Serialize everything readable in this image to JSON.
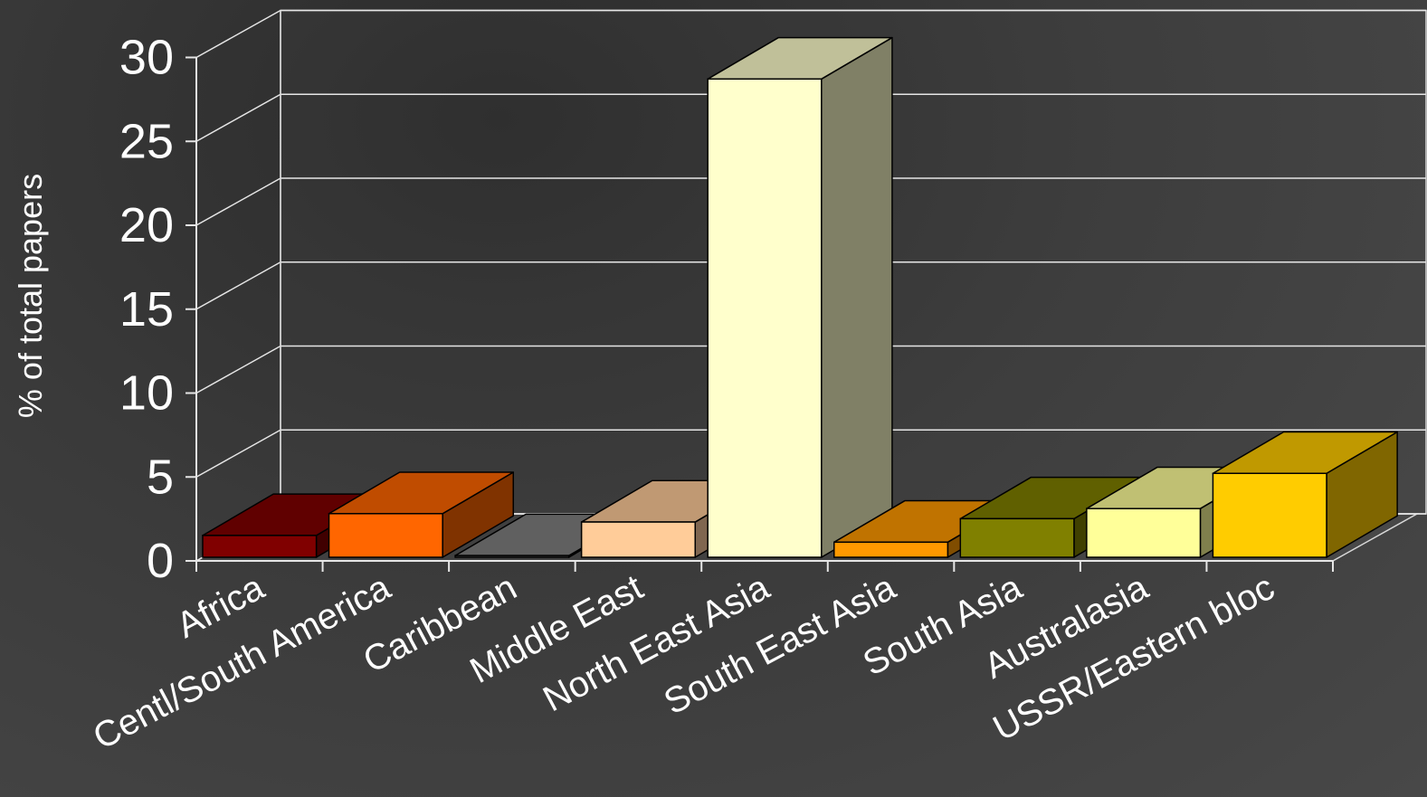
{
  "chart_data": {
    "type": "bar",
    "style": "3d",
    "title": "",
    "xlabel": "",
    "ylabel": "% of total papers",
    "ylim": [
      0,
      30
    ],
    "yticks": [
      0,
      5,
      10,
      15,
      20,
      25,
      30
    ],
    "grid": true,
    "legend": "none",
    "categories": [
      "Africa",
      "Centl/South America",
      "Caribbean",
      "Middle East",
      "North East Asia",
      "South East Asia",
      "South Asia",
      "Australasia",
      "USSR/Eastern bloc"
    ],
    "values": [
      1.3,
      2.6,
      0.1,
      2.1,
      28.5,
      0.9,
      2.3,
      2.9,
      5.0
    ],
    "colors": {
      "front": [
        "#800000",
        "#FF6600",
        "#5a5a5a",
        "#FFCC99",
        "#FFFFCC",
        "#FF9900",
        "#808000",
        "#FFFF99",
        "#FFCC00"
      ],
      "top": [
        "#600000",
        "#C04C00",
        "#606060",
        "#C09973",
        "#C0C099",
        "#C07300",
        "#606000",
        "#C0C073",
        "#C09900"
      ],
      "side": [
        "#400000",
        "#803300",
        "#404040",
        "#806650",
        "#808066",
        "#804D00",
        "#404000",
        "#80804D",
        "#806600"
      ]
    }
  }
}
